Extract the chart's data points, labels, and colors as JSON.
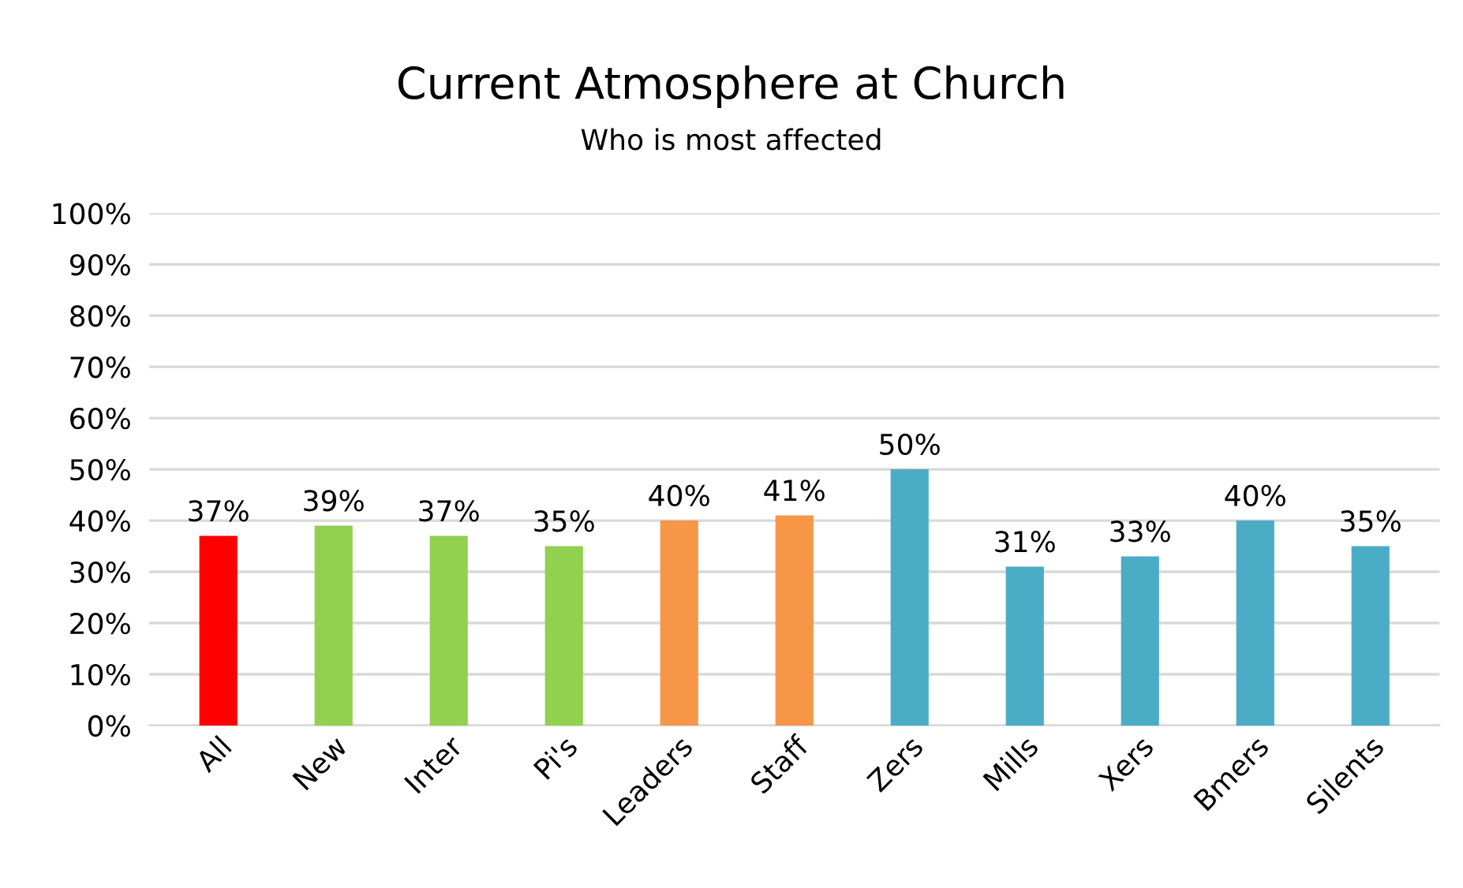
{
  "chart_data": {
    "type": "bar",
    "title": "Current Atmosphere at Church",
    "subtitle": "Who is most affected",
    "categories": [
      "All",
      "New",
      "Inter",
      "Pi's",
      "Leaders",
      "Staff",
      "Zers",
      "Mills",
      "Xers",
      "Bmers",
      "Silents"
    ],
    "values": [
      37,
      39,
      37,
      35,
      40,
      41,
      50,
      31,
      33,
      40,
      35
    ],
    "value_labels": [
      "37%",
      "39%",
      "37%",
      "35%",
      "40%",
      "41%",
      "50%",
      "31%",
      "33%",
      "40%",
      "35%"
    ],
    "colors": [
      "#ff0000",
      "#92d050",
      "#92d050",
      "#92d050",
      "#f79646",
      "#f79646",
      "#4bacc6",
      "#4bacc6",
      "#4bacc6",
      "#4bacc6",
      "#4bacc6"
    ],
    "ylim": [
      0,
      100
    ],
    "yticks": [
      {
        "value": 0,
        "label": "0%"
      },
      {
        "value": 10,
        "label": "10%"
      },
      {
        "value": 20,
        "label": "20%"
      },
      {
        "value": 30,
        "label": "30%"
      },
      {
        "value": 40,
        "label": "40%"
      },
      {
        "value": 50,
        "label": "50%"
      },
      {
        "value": 60,
        "label": "60%"
      },
      {
        "value": 70,
        "label": "70%"
      },
      {
        "value": 80,
        "label": "80%"
      },
      {
        "value": 90,
        "label": "90%"
      },
      {
        "value": 100,
        "label": "100%"
      }
    ],
    "grid": "y",
    "legend": false
  }
}
